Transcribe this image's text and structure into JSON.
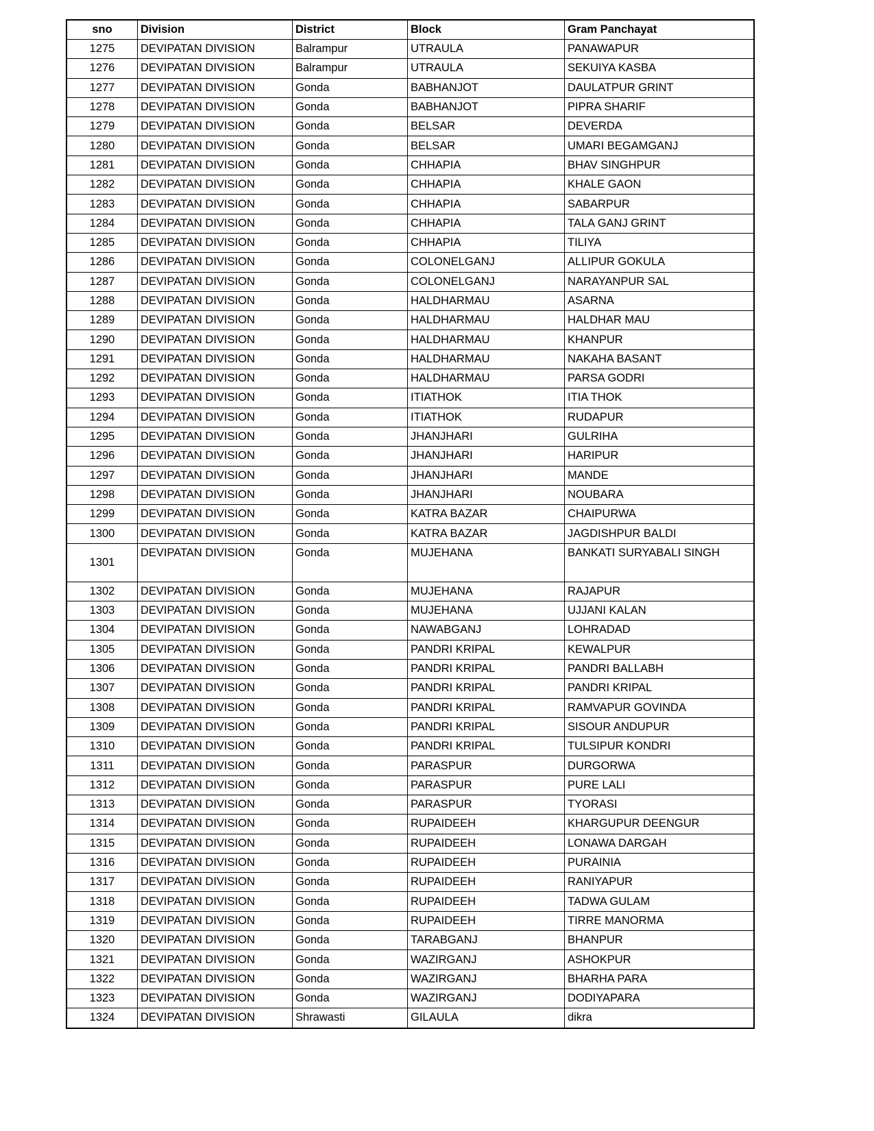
{
  "headers": [
    "sno",
    "Division",
    "District",
    "Block",
    "Gram Panchayat"
  ],
  "rows": [
    [
      "1275",
      "DEVIPATAN DIVISION",
      "Balrampur",
      "UTRAULA",
      "PANAWAPUR"
    ],
    [
      "1276",
      "DEVIPATAN DIVISION",
      "Balrampur",
      "UTRAULA",
      "SEKUIYA KASBA"
    ],
    [
      "1277",
      "DEVIPATAN DIVISION",
      "Gonda",
      "BABHANJOT",
      "DAULATPUR GRINT"
    ],
    [
      "1278",
      "DEVIPATAN DIVISION",
      "Gonda",
      "BABHANJOT",
      "PIPRA SHARIF"
    ],
    [
      "1279",
      "DEVIPATAN DIVISION",
      "Gonda",
      "BELSAR",
      "DEVERDA"
    ],
    [
      "1280",
      "DEVIPATAN DIVISION",
      "Gonda",
      "BELSAR",
      "UMARI BEGAMGANJ"
    ],
    [
      "1281",
      "DEVIPATAN DIVISION",
      "Gonda",
      "CHHAPIA",
      "BHAV SINGHPUR"
    ],
    [
      "1282",
      "DEVIPATAN DIVISION",
      "Gonda",
      "CHHAPIA",
      "KHALE GAON"
    ],
    [
      "1283",
      "DEVIPATAN DIVISION",
      "Gonda",
      "CHHAPIA",
      "SABARPUR"
    ],
    [
      "1284",
      "DEVIPATAN DIVISION",
      "Gonda",
      "CHHAPIA",
      "TALA GANJ   GRINT"
    ],
    [
      "1285",
      "DEVIPATAN DIVISION",
      "Gonda",
      "CHHAPIA",
      "TILIYA"
    ],
    [
      "1286",
      "DEVIPATAN DIVISION",
      "Gonda",
      "COLONELGANJ",
      "ALLIPUR GOKULA"
    ],
    [
      "1287",
      "DEVIPATAN DIVISION",
      "Gonda",
      "COLONELGANJ",
      "NARAYANPUR SAL"
    ],
    [
      "1288",
      "DEVIPATAN DIVISION",
      "Gonda",
      "HALDHARMAU",
      "ASARNA"
    ],
    [
      "1289",
      "DEVIPATAN DIVISION",
      "Gonda",
      "HALDHARMAU",
      "HALDHAR MAU"
    ],
    [
      "1290",
      "DEVIPATAN DIVISION",
      "Gonda",
      "HALDHARMAU",
      "KHANPUR"
    ],
    [
      "1291",
      "DEVIPATAN DIVISION",
      "Gonda",
      "HALDHARMAU",
      "NAKAHA BASANT"
    ],
    [
      "1292",
      "DEVIPATAN DIVISION",
      "Gonda",
      "HALDHARMAU",
      "PARSA GODRI"
    ],
    [
      "1293",
      "DEVIPATAN DIVISION",
      "Gonda",
      "ITIATHOK",
      "ITIA THOK"
    ],
    [
      "1294",
      "DEVIPATAN DIVISION",
      "Gonda",
      "ITIATHOK",
      "RUDAPUR"
    ],
    [
      "1295",
      "DEVIPATAN DIVISION",
      "Gonda",
      "JHANJHARI",
      "GULRIHA"
    ],
    [
      "1296",
      "DEVIPATAN DIVISION",
      "Gonda",
      "JHANJHARI",
      "HARIPUR"
    ],
    [
      "1297",
      "DEVIPATAN DIVISION",
      "Gonda",
      "JHANJHARI",
      "MANDE"
    ],
    [
      "1298",
      "DEVIPATAN DIVISION",
      "Gonda",
      "JHANJHARI",
      "NOUBARA"
    ],
    [
      "1299",
      "DEVIPATAN DIVISION",
      "Gonda",
      "KATRA BAZAR",
      "CHAIPURWA"
    ],
    [
      "1300",
      "DEVIPATAN DIVISION",
      "Gonda",
      "KATRA BAZAR",
      "JAGDISHPUR BALDI"
    ],
    [
      "1301",
      "DEVIPATAN DIVISION",
      "Gonda",
      "MUJEHANA",
      "BANKATI SURYABALI SINGH"
    ],
    [
      "1302",
      "DEVIPATAN DIVISION",
      "Gonda",
      "MUJEHANA",
      "RAJAPUR"
    ],
    [
      "1303",
      "DEVIPATAN DIVISION",
      "Gonda",
      "MUJEHANA",
      "UJJANI KALAN"
    ],
    [
      "1304",
      "DEVIPATAN DIVISION",
      "Gonda",
      "NAWABGANJ",
      "LOHRADAD"
    ],
    [
      "1305",
      "DEVIPATAN DIVISION",
      "Gonda",
      "PANDRI KRIPAL",
      "KEWALPUR"
    ],
    [
      "1306",
      "DEVIPATAN DIVISION",
      "Gonda",
      "PANDRI KRIPAL",
      "PANDRI BALLABH"
    ],
    [
      "1307",
      "DEVIPATAN DIVISION",
      "Gonda",
      "PANDRI KRIPAL",
      "PANDRI KRIPAL"
    ],
    [
      "1308",
      "DEVIPATAN DIVISION",
      "Gonda",
      "PANDRI KRIPAL",
      "RAMVAPUR GOVINDA"
    ],
    [
      "1309",
      "DEVIPATAN DIVISION",
      "Gonda",
      "PANDRI KRIPAL",
      "SISOUR ANDUPUR"
    ],
    [
      "1310",
      "DEVIPATAN DIVISION",
      "Gonda",
      "PANDRI KRIPAL",
      "TULSIPUR KONDRI"
    ],
    [
      "1311",
      "DEVIPATAN DIVISION",
      "Gonda",
      "PARASPUR",
      "DURGORWA"
    ],
    [
      "1312",
      "DEVIPATAN DIVISION",
      "Gonda",
      "PARASPUR",
      "PURE LALI"
    ],
    [
      "1313",
      "DEVIPATAN DIVISION",
      "Gonda",
      "PARASPUR",
      "TYORASI"
    ],
    [
      "1314",
      "DEVIPATAN DIVISION",
      "Gonda",
      "RUPAIDEEH",
      "KHARGUPUR DEENGUR"
    ],
    [
      "1315",
      "DEVIPATAN DIVISION",
      "Gonda",
      "RUPAIDEEH",
      "LONAWA DARGAH"
    ],
    [
      "1316",
      "DEVIPATAN DIVISION",
      "Gonda",
      "RUPAIDEEH",
      "PURAINIA"
    ],
    [
      "1317",
      "DEVIPATAN DIVISION",
      "Gonda",
      "RUPAIDEEH",
      "RANIYAPUR"
    ],
    [
      "1318",
      "DEVIPATAN DIVISION",
      "Gonda",
      "RUPAIDEEH",
      "TADWA GULAM"
    ],
    [
      "1319",
      "DEVIPATAN DIVISION",
      "Gonda",
      "RUPAIDEEH",
      "TIRRE MANORMA"
    ],
    [
      "1320",
      "DEVIPATAN DIVISION",
      "Gonda",
      "TARABGANJ",
      "BHANPUR"
    ],
    [
      "1321",
      "DEVIPATAN DIVISION",
      "Gonda",
      "WAZIRGANJ",
      "ASHOKPUR"
    ],
    [
      "1322",
      "DEVIPATAN DIVISION",
      "Gonda",
      "WAZIRGANJ",
      "BHARHA PARA"
    ],
    [
      "1323",
      "DEVIPATAN DIVISION",
      "Gonda",
      "WAZIRGANJ",
      "DODIYAPARA"
    ],
    [
      "1324",
      "DEVIPATAN DIVISION",
      "Shrawasti",
      "GILAULA",
      "dikra"
    ]
  ]
}
